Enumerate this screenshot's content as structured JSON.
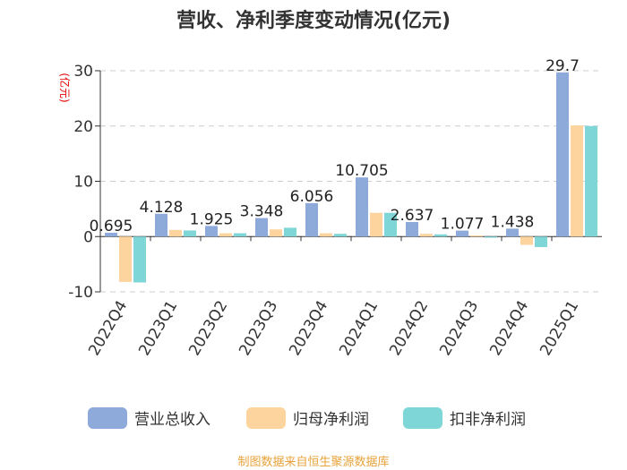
{
  "chart_data": {
    "type": "bar",
    "title": "营收、净利季度变动情况(亿元)",
    "ylabel": "(亿元)",
    "ylim": [
      -10,
      30
    ],
    "yticks": [
      -10,
      0,
      10,
      20,
      30
    ],
    "grid": true,
    "legend_position": "bottom",
    "categories": [
      "2022Q4",
      "2023Q1",
      "2023Q2",
      "2023Q3",
      "2023Q4",
      "2024Q1",
      "2024Q2",
      "2024Q3",
      "2024Q4",
      "2025Q1"
    ],
    "series": [
      {
        "name": "营业总收入",
        "color": "#8eaadb",
        "values": [
          0.695,
          4.128,
          1.925,
          3.348,
          6.056,
          10.705,
          2.637,
          1.077,
          1.438,
          29.7
        ]
      },
      {
        "name": "归母净利润",
        "color": "#fdd49e",
        "values": [
          -8.2,
          1.2,
          0.6,
          1.3,
          0.6,
          4.3,
          0.5,
          0.2,
          -1.5,
          20.1
        ]
      },
      {
        "name": "扣非净利润",
        "color": "#7fd6d6",
        "values": [
          -8.3,
          1.1,
          0.6,
          1.6,
          0.5,
          4.3,
          0.4,
          -0.2,
          -1.9,
          20.0
        ]
      }
    ],
    "data_labels": [
      "0.695",
      "4.128",
      "1.925",
      "3.348",
      "6.056",
      "10.705",
      "2.637",
      "1.077",
      "1.438",
      "29.7"
    ],
    "source": "制图数据来自恒生聚源数据库"
  }
}
